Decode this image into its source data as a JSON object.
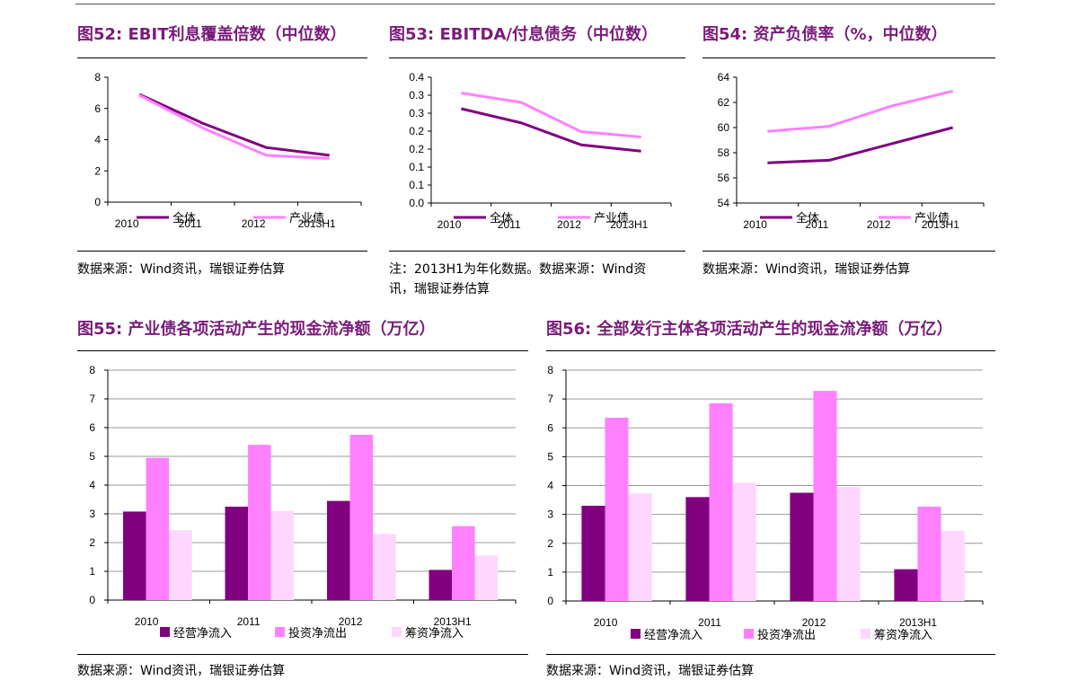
{
  "colors": {
    "dark": "#800080",
    "pink": "#ff80ff",
    "light": "#ffd6ff",
    "title": "#7a1b7a"
  },
  "panels": [
    {
      "title": "图52: EBIT利息覆盖倍数（中位数）",
      "notes": [
        "数据来源：Wind资讯，瑞银证券估算"
      ]
    },
    {
      "title": "图53: EBITDA/付息债务（中位数）",
      "notes": [
        "注：2013H1为年化数据。数据来源：Wind资",
        "讯，瑞银证券估算"
      ]
    },
    {
      "title": "图54: 资产负债率（%，中位数）",
      "notes": [
        "数据来源：Wind资讯，瑞银证券估算"
      ]
    },
    {
      "title": "图55: 产业债各项活动产生的现金流净额（万亿）",
      "notes": [
        "数据来源：Wind资讯，瑞银证券估算"
      ]
    },
    {
      "title": "图56: 全部发行主体各项活动产生的现金流净额（万亿）",
      "notes": [
        "数据来源：Wind资讯，瑞银证券估算"
      ]
    }
  ],
  "chart_data": [
    {
      "type": "line",
      "categories": [
        "2010",
        "2011",
        "2012",
        "2013H1"
      ],
      "ylim": [
        0,
        8
      ],
      "yticks": [
        "0",
        "2",
        "4",
        "6",
        "8"
      ],
      "grid": false,
      "legend_position": "bottom",
      "series": [
        {
          "name": "全体",
          "values": [
            6.9,
            5.05,
            3.5,
            3.0
          ],
          "color": "#800080"
        },
        {
          "name": "产业债",
          "values": [
            6.85,
            4.75,
            3.0,
            2.8
          ],
          "color": "#ff80ff"
        }
      ]
    },
    {
      "type": "line",
      "categories": [
        "2010",
        "2011",
        "2012",
        "2013H1"
      ],
      "ylim": [
        0,
        0.4
      ],
      "yticks": [
        "0.0",
        "0.1",
        "0.1",
        "0.2",
        "0.2",
        "0.3",
        "0.3",
        "0.4"
      ],
      "grid": false,
      "legend_position": "bottom",
      "series": [
        {
          "name": "全体",
          "values": [
            0.3,
            0.255,
            0.185,
            0.165
          ],
          "color": "#800080"
        },
        {
          "name": "产业债",
          "values": [
            0.35,
            0.32,
            0.227,
            0.21
          ],
          "color": "#ff80ff"
        }
      ]
    },
    {
      "type": "line",
      "categories": [
        "2010",
        "2011",
        "2012",
        "2013H1"
      ],
      "ylim": [
        54,
        64
      ],
      "yticks": [
        "54",
        "56",
        "58",
        "60",
        "62",
        "64"
      ],
      "grid": false,
      "legend_position": "bottom",
      "series": [
        {
          "name": "全体",
          "values": [
            57.2,
            57.4,
            58.7,
            60.0
          ],
          "color": "#800080"
        },
        {
          "name": "产业债",
          "values": [
            59.7,
            60.1,
            61.7,
            62.9
          ],
          "color": "#ff80ff"
        }
      ]
    },
    {
      "type": "bar",
      "categories": [
        "2010",
        "2011",
        "2012",
        "2013H1"
      ],
      "ylim": [
        0,
        8
      ],
      "yticks": [
        "0",
        "1",
        "2",
        "3",
        "4",
        "5",
        "6",
        "7",
        "8"
      ],
      "grid": true,
      "legend_position": "bottom",
      "series": [
        {
          "name": "经营净流入",
          "values": [
            3.08,
            3.25,
            3.45,
            1.05
          ],
          "color": "#800080"
        },
        {
          "name": "投资净流出",
          "values": [
            4.95,
            5.4,
            5.75,
            2.57
          ],
          "color": "#ff80ff"
        },
        {
          "name": "筹资净流入",
          "values": [
            2.43,
            3.1,
            2.3,
            1.55
          ],
          "color": "#ffd6ff"
        }
      ]
    },
    {
      "type": "bar",
      "categories": [
        "2010",
        "2011",
        "2012",
        "2013H1"
      ],
      "ylim": [
        0,
        8
      ],
      "yticks": [
        "0",
        "1",
        "2",
        "3",
        "4",
        "5",
        "6",
        "7",
        "8"
      ],
      "grid": true,
      "legend_position": "bottom",
      "series": [
        {
          "name": "经营净流入",
          "values": [
            3.3,
            3.6,
            3.75,
            1.1
          ],
          "color": "#800080"
        },
        {
          "name": "投资净流出",
          "values": [
            6.35,
            6.85,
            7.28,
            3.27
          ],
          "color": "#ff80ff"
        },
        {
          "name": "筹资净流入",
          "values": [
            3.73,
            4.1,
            3.95,
            2.43
          ],
          "color": "#ffd6ff"
        }
      ]
    }
  ]
}
